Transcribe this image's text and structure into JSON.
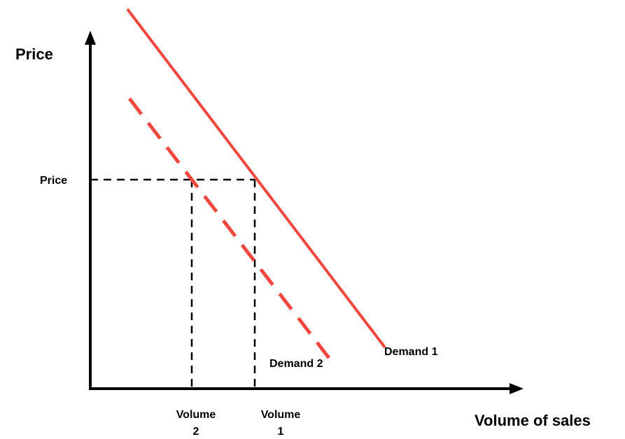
{
  "diagram": {
    "y_axis_label": "Price",
    "x_axis_label": "Volume of sales",
    "price_tick_label": "Price",
    "volume2_label_line1": "Volume",
    "volume2_label_line2": "2",
    "volume1_label_line1": "Volume",
    "volume1_label_line2": "1",
    "demand1_label": "Demand 1",
    "demand2_label": "Demand 2",
    "colors": {
      "demand_curve": "#f2473f",
      "axes": "#000000",
      "guides": "#000000"
    }
  }
}
